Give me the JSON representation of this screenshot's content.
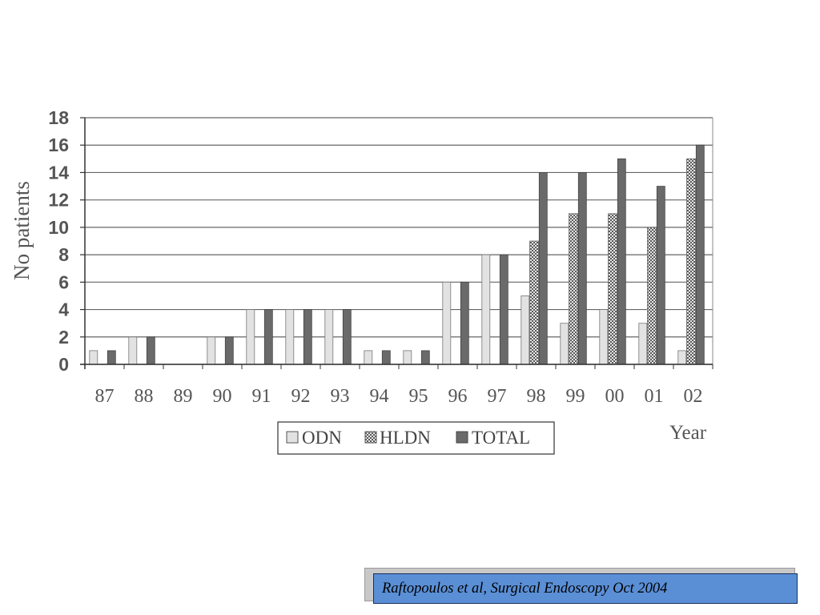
{
  "chart_data": {
    "type": "bar",
    "categories": [
      "87",
      "88",
      "89",
      "90",
      "91",
      "92",
      "93",
      "94",
      "95",
      "96",
      "97",
      "98",
      "99",
      "00",
      "01",
      "02"
    ],
    "series": [
      {
        "name": "ODN",
        "values": [
          1,
          2,
          0,
          2,
          4,
          4,
          4,
          1,
          1,
          6,
          8,
          5,
          3,
          4,
          3,
          1
        ]
      },
      {
        "name": "HLDN",
        "values": [
          0,
          0,
          0,
          0,
          0,
          0,
          0,
          0,
          0,
          0,
          0,
          9,
          11,
          11,
          10,
          15
        ]
      },
      {
        "name": "TOTAL",
        "values": [
          1,
          2,
          0,
          2,
          4,
          4,
          4,
          1,
          1,
          6,
          8,
          14,
          14,
          15,
          13,
          16
        ]
      }
    ],
    "yticks": [
      "0",
      "2",
      "4",
      "6",
      "8",
      "10",
      "12",
      "14",
      "16",
      "18"
    ],
    "ylim": [
      0,
      18
    ],
    "xlabel": "Year",
    "ylabel": "No patients",
    "grid": true,
    "legend_position": "bottom-center",
    "colors": {
      "ODN": "#e2e2e2",
      "HLDN": "#9a9a9a",
      "TOTAL": "#6a6a6a",
      "grid": "#666666",
      "text": "#555555"
    }
  },
  "citation": {
    "text": "Raftopoulos et al, Surgical Endoscopy Oct 2004"
  }
}
